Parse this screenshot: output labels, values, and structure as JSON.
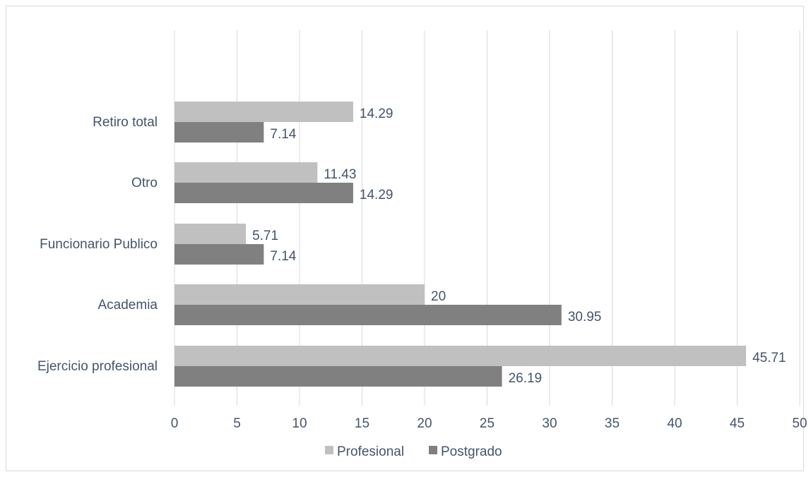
{
  "chart_data": {
    "type": "bar",
    "orientation": "horizontal",
    "title": "",
    "xlabel": "",
    "ylabel": "",
    "categories": [
      "Retiro total",
      "Otro",
      "Funcionario Publico",
      "Academia",
      "Ejercicio profesional"
    ],
    "series": [
      {
        "name": "Profesional",
        "values": [
          14.29,
          11.43,
          5.71,
          20,
          45.71
        ],
        "color": "#c0c0c0"
      },
      {
        "name": "Postgrado",
        "values": [
          7.14,
          14.29,
          7.14,
          30.95,
          26.19
        ],
        "color": "#808080"
      }
    ],
    "xlim": [
      0,
      50
    ],
    "xticks": [
      0,
      5,
      10,
      15,
      20,
      25,
      30,
      35,
      40,
      45,
      50
    ],
    "tick_labels": [
      "0",
      "5",
      "10",
      "15",
      "20",
      "25",
      "30",
      "35",
      "40",
      "45",
      "50"
    ],
    "data_labels": [
      [
        "14.29",
        "11.43",
        "5.71",
        "20",
        "45.71"
      ],
      [
        "7.14",
        "14.29",
        "7.14",
        "30.95",
        "26.19"
      ]
    ],
    "grid": "vertical",
    "legend_position": "bottom"
  }
}
